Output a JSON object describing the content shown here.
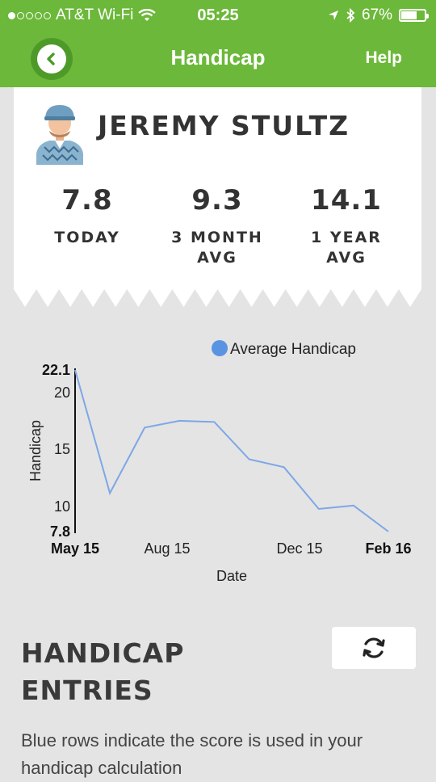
{
  "status_bar": {
    "carrier": "AT&T Wi-Fi",
    "time": "05:25",
    "battery": "67%",
    "signal_bars_filled": 1,
    "signal_bars_total": 5,
    "battery_level": 0.67
  },
  "nav": {
    "title": "Handicap",
    "help_label": "Help",
    "back_icon": "chevron-left-icon"
  },
  "player": {
    "name": "JEREMY STULTZ",
    "avatar_icon": "golfer-avatar-icon"
  },
  "stats": [
    {
      "value": "7.8",
      "label_line1": "TODAY",
      "label_line2": ""
    },
    {
      "value": "9.3",
      "label_line1": "3 MONTH",
      "label_line2": "AVG"
    },
    {
      "value": "14.1",
      "label_line1": "1 YEAR",
      "label_line2": "AVG"
    }
  ],
  "chart_data": {
    "type": "line",
    "legend": "Average Handicap",
    "legend_color": "#5b93e3",
    "xlabel": "Date",
    "ylabel": "Handicap",
    "x_ticks": [
      "May 15",
      "Aug 15",
      "Dec 15",
      "Feb 16"
    ],
    "y_ticks": [
      "22.1",
      "20",
      "15",
      "10",
      "7.8"
    ],
    "ylim": [
      7.8,
      22.1
    ],
    "series": [
      {
        "name": "Average Handicap",
        "color": "#7da7e6",
        "values": [
          22.1,
          11.2,
          17.0,
          17.6,
          17.5,
          14.2,
          13.5,
          9.8,
          10.1,
          7.8
        ]
      }
    ]
  },
  "entries": {
    "title_line1": "HANDICAP",
    "title_line2": "ENTRIES",
    "refresh_icon": "refresh-icon",
    "note": "Blue rows indicate the score is used in your handicap calculation"
  }
}
